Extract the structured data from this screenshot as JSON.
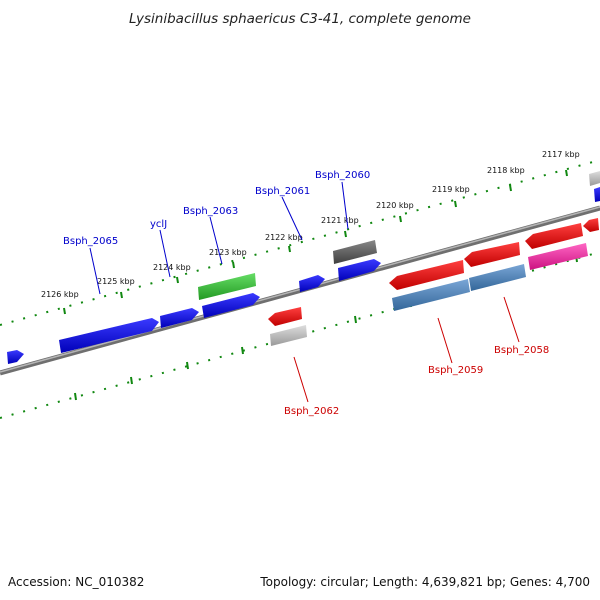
{
  "title": "Lysinibacillus sphaericus C3-41, complete genome",
  "footer": {
    "accession": "Accession: NC_010382",
    "topology": "Topology: circular; Length: 4,639,821 bp; Genes: 4,700"
  },
  "ticks": [
    {
      "label": "2117 kbp"
    },
    {
      "label": "2118 kbp"
    },
    {
      "label": "2119 kbp"
    },
    {
      "label": "2120 kbp"
    },
    {
      "label": "2121 kbp"
    },
    {
      "label": "2122 kbp"
    },
    {
      "label": "2123 kbp"
    },
    {
      "label": "2124 kbp"
    },
    {
      "label": "2125 kbp"
    },
    {
      "label": "2126 kbp"
    }
  ],
  "gene_labels": {
    "forward": [
      "Bsph_2065",
      "yclJ",
      "Bsph_2063",
      "Bsph_2061",
      "Bsph_2060"
    ],
    "reverse": [
      "Bsph_2062",
      "Bsph_2059",
      "Bsph_2058"
    ]
  },
  "colors": {
    "forward_label": "#0000cc",
    "reverse_label": "#cc0000",
    "tick": "#118811",
    "backbone": "#8a8a8a",
    "blue_gene": "#0000ee",
    "green_gene": "#33bb33",
    "dark_gray_gene": "#555555",
    "red_gene": "#ee0000",
    "light_gray_gene": "#bbbbbb",
    "steelblue_gene": "#4a7fb5",
    "pink_gene": "#ee2299"
  }
}
